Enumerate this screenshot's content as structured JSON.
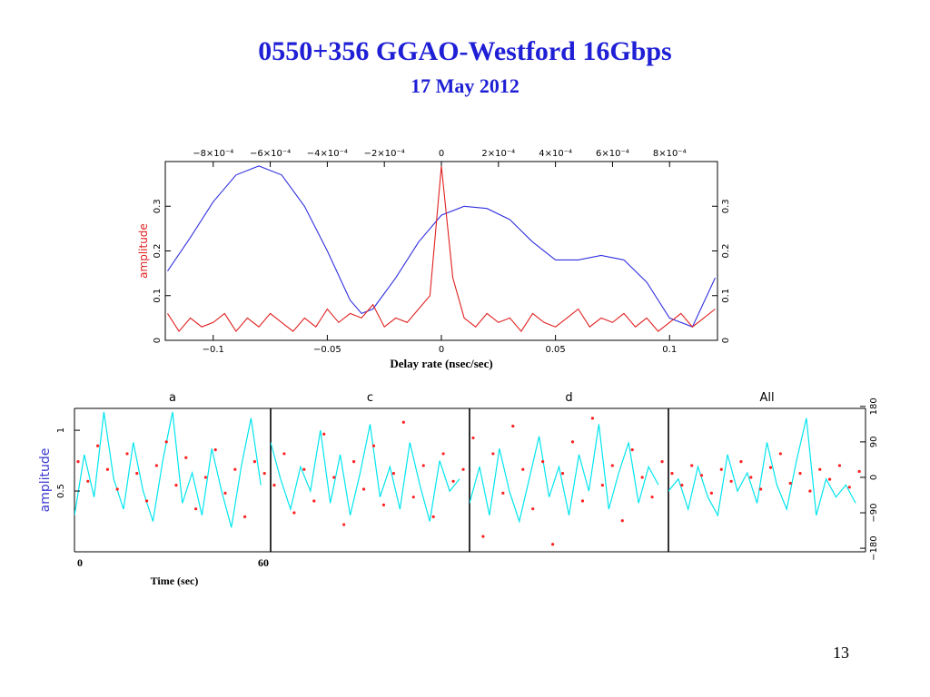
{
  "slide": {
    "title": "0550+356 GGAO-Westford 16Gbps",
    "subtitle": "17 May 2012",
    "page_number": "13"
  },
  "chart_data": [
    {
      "type": "line",
      "xlabel": "Delay rate (nsec/sec)",
      "ylabel": "amplitude",
      "xlim": [
        -0.121,
        0.121
      ],
      "xticks": [
        {
          "value": -0.1,
          "label": "−0.1"
        },
        {
          "value": -0.05,
          "label": "−0.05"
        },
        0,
        0.05,
        0.1
      ],
      "x2lim": [
        -0.000968,
        0.000968
      ],
      "x2ticks": [
        {
          "value": -0.0008,
          "label": "−8×10⁻⁴"
        },
        {
          "value": -0.0006,
          "label": "−6×10⁻⁴"
        },
        {
          "value": -0.0004,
          "label": "−4×10⁻⁴"
        },
        {
          "value": -0.0002,
          "label": "−2×10⁻⁴"
        },
        0,
        {
          "value": 0.0002,
          "label": "2×10⁻⁴"
        },
        {
          "value": 0.0004,
          "label": "4×10⁻⁴"
        },
        {
          "value": 0.0006,
          "label": "6×10⁻⁴"
        },
        {
          "value": 0.0008,
          "label": "8×10⁻⁴"
        }
      ],
      "ylim": [
        0,
        0.4
      ],
      "yticks": [
        0,
        0.1,
        0.2,
        0.3
      ],
      "series": [
        {
          "color": "#3030e0",
          "x": [
            -0.12,
            -0.11,
            -0.1,
            -0.09,
            -0.08,
            -0.07,
            -0.06,
            -0.05,
            -0.04,
            -0.035,
            -0.03,
            -0.02,
            -0.01,
            0,
            0.01,
            0.02,
            0.03,
            0.04,
            0.05,
            0.06,
            0.07,
            0.08,
            0.09,
            0.1,
            0.11,
            0.12
          ],
          "values": [
            0.155,
            0.23,
            0.31,
            0.37,
            0.39,
            0.37,
            0.3,
            0.2,
            0.09,
            0.06,
            0.07,
            0.14,
            0.22,
            0.28,
            0.3,
            0.295,
            0.27,
            0.22,
            0.18,
            0.18,
            0.19,
            0.18,
            0.13,
            0.05,
            0.03,
            0.14
          ]
        },
        {
          "color": "#e02020",
          "x": [
            -0.12,
            -0.115,
            -0.11,
            -0.105,
            -0.1,
            -0.095,
            -0.09,
            -0.085,
            -0.08,
            -0.075,
            -0.07,
            -0.065,
            -0.06,
            -0.055,
            -0.05,
            -0.045,
            -0.04,
            -0.035,
            -0.03,
            -0.025,
            -0.02,
            -0.015,
            -0.01,
            -0.005,
            0,
            0.005,
            0.01,
            0.015,
            0.02,
            0.025,
            0.03,
            0.035,
            0.04,
            0.045,
            0.05,
            0.055,
            0.06,
            0.065,
            0.07,
            0.075,
            0.08,
            0.085,
            0.09,
            0.095,
            0.1,
            0.105,
            0.11,
            0.115,
            0.12
          ],
          "values": [
            0.06,
            0.02,
            0.05,
            0.03,
            0.04,
            0.06,
            0.02,
            0.05,
            0.03,
            0.06,
            0.04,
            0.02,
            0.05,
            0.03,
            0.07,
            0.04,
            0.06,
            0.05,
            0.08,
            0.03,
            0.05,
            0.04,
            0.07,
            0.1,
            0.39,
            0.14,
            0.05,
            0.03,
            0.06,
            0.04,
            0.05,
            0.02,
            0.06,
            0.04,
            0.03,
            0.05,
            0.07,
            0.03,
            0.05,
            0.04,
            0.06,
            0.03,
            0.05,
            0.02,
            0.04,
            0.06,
            0.03,
            0.05,
            0.07
          ]
        }
      ]
    },
    {
      "type": "panels",
      "xlabel": "Time (sec)",
      "ylabel": "amplitude",
      "xlim": [
        0,
        60
      ],
      "xticks": [
        0,
        60
      ],
      "ylim": [
        0,
        1.18
      ],
      "yticks": [
        0.5,
        1
      ],
      "y2lim": [
        -189,
        175
      ],
      "y2ticks": [
        180,
        90,
        0,
        {
          "value": -90,
          "label": "−90"
        },
        {
          "value": -180,
          "label": "−180"
        }
      ],
      "x": [
        0,
        3,
        6,
        9,
        12,
        15,
        18,
        21,
        24,
        27,
        30,
        33,
        36,
        39,
        42,
        45,
        48,
        51,
        54,
        57
      ],
      "panels": [
        {
          "title": "a",
          "series": [
            {
              "color": "#00e5ee",
              "values": [
                0.3,
                0.8,
                0.45,
                1.15,
                0.6,
                0.35,
                0.9,
                0.5,
                0.25,
                0.75,
                1.15,
                0.4,
                0.65,
                0.3,
                0.85,
                0.5,
                0.2,
                0.7,
                1.1,
                0.55
              ]
            },
            {
              "color": "#ff2020",
              "axis": "y2",
              "values": [
                40,
                -10,
                80,
                20,
                -30,
                60,
                10,
                -60,
                30,
                90,
                -20,
                50,
                -80,
                0,
                70,
                -40,
                20,
                -100,
                40,
                10
              ]
            }
          ]
        },
        {
          "title": "c",
          "series": [
            {
              "color": "#00e5ee",
              "values": [
                0.9,
                0.6,
                0.35,
                0.7,
                0.5,
                1.0,
                0.4,
                0.8,
                0.3,
                0.65,
                1.05,
                0.45,
                0.7,
                0.35,
                0.9,
                0.55,
                0.25,
                0.75,
                0.5,
                0.6
              ]
            },
            {
              "color": "#ff2020",
              "axis": "y2",
              "values": [
                -20,
                60,
                -90,
                20,
                -60,
                110,
                0,
                -120,
                40,
                -30,
                80,
                -70,
                10,
                140,
                -50,
                30,
                -100,
                60,
                -10,
                20
              ]
            }
          ]
        },
        {
          "title": "d",
          "series": [
            {
              "color": "#00e5ee",
              "values": [
                0.4,
                0.7,
                0.3,
                0.85,
                0.5,
                0.25,
                0.6,
                0.95,
                0.45,
                0.7,
                0.3,
                0.8,
                0.5,
                1.05,
                0.35,
                0.65,
                0.9,
                0.4,
                0.7,
                0.55
              ]
            },
            {
              "color": "#ff2020",
              "axis": "y2",
              "values": [
                100,
                -150,
                60,
                -40,
                130,
                20,
                -80,
                40,
                -170,
                10,
                90,
                -60,
                150,
                -20,
                30,
                -110,
                70,
                0,
                -50,
                40
              ]
            }
          ]
        },
        {
          "title": "All",
          "series": [
            {
              "color": "#00e5ee",
              "values": [
                0.5,
                0.6,
                0.35,
                0.7,
                0.45,
                0.3,
                0.8,
                0.5,
                0.65,
                0.4,
                0.9,
                0.55,
                0.35,
                0.75,
                1.1,
                0.3,
                0.6,
                0.45,
                0.55,
                0.4
              ]
            },
            {
              "color": "#ff2020",
              "axis": "y2",
              "values": [
                10,
                -20,
                30,
                5,
                -40,
                20,
                -10,
                40,
                0,
                -30,
                25,
                60,
                -15,
                10,
                -35,
                20,
                -5,
                30,
                -25,
                15
              ]
            }
          ]
        }
      ]
    }
  ]
}
